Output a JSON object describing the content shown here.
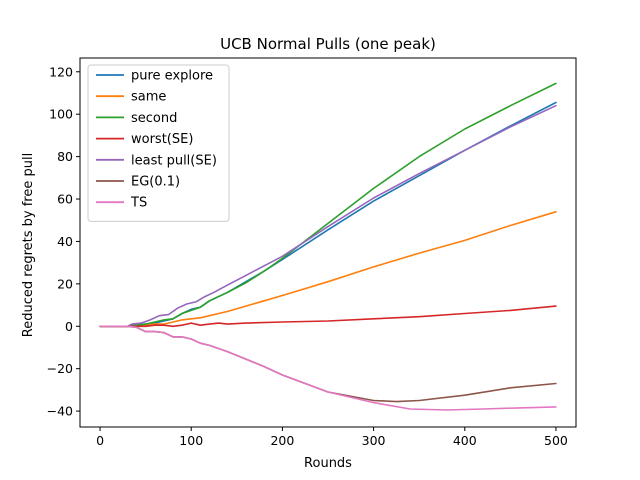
{
  "chart_data": {
    "type": "line",
    "title": "UCB Normal Pulls (one peak)",
    "xlabel": "Rounds",
    "ylabel": "Reduced regrets by free pull",
    "xlim": [
      -22,
      522
    ],
    "ylim": [
      -47.5,
      126.5
    ],
    "xticks": [
      0,
      100,
      200,
      300,
      400,
      500
    ],
    "yticks": [
      -40,
      -20,
      0,
      20,
      40,
      60,
      80,
      100,
      120
    ],
    "grid": false,
    "legend_position": "upper-left",
    "series": [
      {
        "name": "pure explore",
        "color": "#1f77b4",
        "points": [
          [
            0,
            0
          ],
          [
            20,
            0
          ],
          [
            30,
            0
          ],
          [
            40,
            0.5
          ],
          [
            50,
            1
          ],
          [
            60,
            1.5
          ],
          [
            70,
            2.5
          ],
          [
            80,
            3.5
          ],
          [
            90,
            6
          ],
          [
            100,
            8
          ],
          [
            110,
            9
          ],
          [
            120,
            12
          ],
          [
            140,
            16
          ],
          [
            160,
            21
          ],
          [
            180,
            26
          ],
          [
            200,
            31.5
          ],
          [
            250,
            45.5
          ],
          [
            300,
            59
          ],
          [
            350,
            71
          ],
          [
            400,
            83
          ],
          [
            450,
            94.5
          ],
          [
            500,
            105.5
          ]
        ]
      },
      {
        "name": "same",
        "color": "#ff7f0e",
        "points": [
          [
            0,
            0
          ],
          [
            30,
            0
          ],
          [
            40,
            0.5
          ],
          [
            50,
            0.5
          ],
          [
            60,
            1
          ],
          [
            70,
            1
          ],
          [
            80,
            2
          ],
          [
            90,
            3
          ],
          [
            100,
            3.5
          ],
          [
            110,
            4
          ],
          [
            120,
            5
          ],
          [
            140,
            7
          ],
          [
            160,
            9.5
          ],
          [
            180,
            12
          ],
          [
            200,
            14.5
          ],
          [
            250,
            21
          ],
          [
            300,
            28
          ],
          [
            350,
            34.5
          ],
          [
            400,
            40.5
          ],
          [
            450,
            47.5
          ],
          [
            500,
            54
          ]
        ]
      },
      {
        "name": "second",
        "color": "#2ca02c",
        "points": [
          [
            0,
            0
          ],
          [
            20,
            0
          ],
          [
            30,
            0
          ],
          [
            40,
            0.5
          ],
          [
            50,
            1
          ],
          [
            60,
            2
          ],
          [
            70,
            3
          ],
          [
            80,
            3.5
          ],
          [
            90,
            6
          ],
          [
            100,
            7.5
          ],
          [
            110,
            9
          ],
          [
            120,
            12
          ],
          [
            140,
            16
          ],
          [
            160,
            20.5
          ],
          [
            180,
            26
          ],
          [
            200,
            32
          ],
          [
            250,
            48.5
          ],
          [
            300,
            65
          ],
          [
            350,
            80
          ],
          [
            400,
            93
          ],
          [
            450,
            104
          ],
          [
            500,
            114.5
          ]
        ]
      },
      {
        "name": "worst(SE)",
        "color": "#d62728",
        "points": [
          [
            0,
            0
          ],
          [
            20,
            0
          ],
          [
            30,
            0
          ],
          [
            40,
            0
          ],
          [
            50,
            0
          ],
          [
            60,
            0.5
          ],
          [
            70,
            0.5
          ],
          [
            80,
            0
          ],
          [
            90,
            0.5
          ],
          [
            100,
            1.5
          ],
          [
            110,
            0.5
          ],
          [
            120,
            1
          ],
          [
            130,
            1.5
          ],
          [
            140,
            1
          ],
          [
            160,
            1.5
          ],
          [
            200,
            2
          ],
          [
            250,
            2.5
          ],
          [
            300,
            3.5
          ],
          [
            350,
            4.5
          ],
          [
            400,
            6
          ],
          [
            450,
            7.5
          ],
          [
            500,
            9.5
          ]
        ]
      },
      {
        "name": "least pull(SE)",
        "color": "#9467bd",
        "points": [
          [
            0,
            0
          ],
          [
            20,
            0
          ],
          [
            30,
            0
          ],
          [
            35,
            1
          ],
          [
            45,
            1.5
          ],
          [
            55,
            3
          ],
          [
            65,
            5
          ],
          [
            75,
            5.5
          ],
          [
            85,
            8.5
          ],
          [
            95,
            10.5
          ],
          [
            105,
            11.5
          ],
          [
            115,
            14
          ],
          [
            125,
            16
          ],
          [
            140,
            19.5
          ],
          [
            160,
            24
          ],
          [
            180,
            28.5
          ],
          [
            200,
            33
          ],
          [
            250,
            47
          ],
          [
            300,
            60.5
          ],
          [
            350,
            72
          ],
          [
            400,
            83
          ],
          [
            450,
            94
          ],
          [
            500,
            104
          ]
        ]
      },
      {
        "name": "EG(0.1)",
        "color": "#8c564b",
        "points": [
          [
            0,
            0
          ],
          [
            20,
            0
          ],
          [
            30,
            0
          ],
          [
            40,
            -0.5
          ],
          [
            50,
            -2.5
          ],
          [
            60,
            -2.5
          ],
          [
            70,
            -3
          ],
          [
            80,
            -5
          ],
          [
            90,
            -5
          ],
          [
            100,
            -6
          ],
          [
            110,
            -8
          ],
          [
            120,
            -9
          ],
          [
            140,
            -12
          ],
          [
            160,
            -15.5
          ],
          [
            180,
            -19
          ],
          [
            200,
            -23
          ],
          [
            250,
            -31
          ],
          [
            300,
            -35
          ],
          [
            325,
            -35.5
          ],
          [
            350,
            -35
          ],
          [
            400,
            -32.5
          ],
          [
            450,
            -29
          ],
          [
            500,
            -27
          ]
        ]
      },
      {
        "name": "TS",
        "color": "#e377c2",
        "points": [
          [
            0,
            0
          ],
          [
            20,
            0
          ],
          [
            30,
            0
          ],
          [
            40,
            -0.5
          ],
          [
            50,
            -2.5
          ],
          [
            60,
            -2.5
          ],
          [
            70,
            -3
          ],
          [
            80,
            -5
          ],
          [
            90,
            -5
          ],
          [
            100,
            -6
          ],
          [
            110,
            -8
          ],
          [
            120,
            -9
          ],
          [
            140,
            -12
          ],
          [
            160,
            -15.5
          ],
          [
            180,
            -19
          ],
          [
            200,
            -23
          ],
          [
            250,
            -31
          ],
          [
            300,
            -36
          ],
          [
            340,
            -39
          ],
          [
            380,
            -39.5
          ],
          [
            420,
            -39
          ],
          [
            460,
            -38.5
          ],
          [
            500,
            -38
          ]
        ]
      }
    ]
  }
}
